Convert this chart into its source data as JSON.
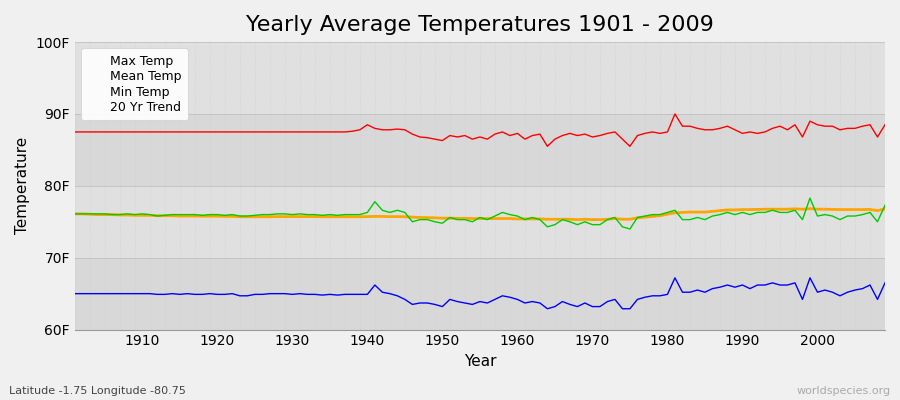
{
  "title": "Yearly Average Temperatures 1901 - 2009",
  "xlabel": "Year",
  "ylabel": "Temperature",
  "lat_lon_text": "Latitude -1.75 Longitude -80.75",
  "watermark": "worldspecies.org",
  "years": [
    1901,
    1902,
    1903,
    1904,
    1905,
    1906,
    1907,
    1908,
    1909,
    1910,
    1911,
    1912,
    1913,
    1914,
    1915,
    1916,
    1917,
    1918,
    1919,
    1920,
    1921,
    1922,
    1923,
    1924,
    1925,
    1926,
    1927,
    1928,
    1929,
    1930,
    1931,
    1932,
    1933,
    1934,
    1935,
    1936,
    1937,
    1938,
    1939,
    1940,
    1941,
    1942,
    1943,
    1944,
    1945,
    1946,
    1947,
    1948,
    1949,
    1950,
    1951,
    1952,
    1953,
    1954,
    1955,
    1956,
    1957,
    1958,
    1959,
    1960,
    1961,
    1962,
    1963,
    1964,
    1965,
    1966,
    1967,
    1968,
    1969,
    1970,
    1971,
    1972,
    1973,
    1974,
    1975,
    1976,
    1977,
    1978,
    1979,
    1980,
    1981,
    1982,
    1983,
    1984,
    1985,
    1986,
    1987,
    1988,
    1989,
    1990,
    1991,
    1992,
    1993,
    1994,
    1995,
    1996,
    1997,
    1998,
    1999,
    2000,
    2001,
    2002,
    2003,
    2004,
    2005,
    2006,
    2007,
    2008,
    2009
  ],
  "max_temp": [
    87.5,
    87.5,
    87.5,
    87.5,
    87.5,
    87.5,
    87.5,
    87.5,
    87.5,
    87.5,
    87.5,
    87.5,
    87.5,
    87.5,
    87.5,
    87.5,
    87.5,
    87.5,
    87.5,
    87.5,
    87.5,
    87.5,
    87.5,
    87.5,
    87.5,
    87.5,
    87.5,
    87.5,
    87.5,
    87.5,
    87.5,
    87.5,
    87.5,
    87.5,
    87.5,
    87.5,
    87.5,
    87.6,
    87.8,
    88.5,
    88.0,
    87.8,
    87.8,
    87.9,
    87.8,
    87.2,
    86.8,
    86.7,
    86.5,
    86.3,
    87.0,
    86.8,
    87.0,
    86.5,
    86.8,
    86.5,
    87.2,
    87.5,
    87.0,
    87.3,
    86.5,
    87.0,
    87.2,
    85.5,
    86.5,
    87.0,
    87.3,
    87.0,
    87.2,
    86.8,
    87.0,
    87.3,
    87.5,
    86.5,
    85.5,
    87.0,
    87.3,
    87.5,
    87.3,
    87.5,
    90.0,
    88.3,
    88.3,
    88.0,
    87.8,
    87.8,
    88.0,
    88.3,
    87.8,
    87.3,
    87.5,
    87.3,
    87.5,
    88.0,
    88.3,
    87.8,
    88.5,
    86.8,
    89.0,
    88.5,
    88.3,
    88.3,
    87.8,
    88.0,
    88.0,
    88.3,
    88.5,
    86.8,
    88.5
  ],
  "mean_temp": [
    76.1,
    76.1,
    76.1,
    76.1,
    76.1,
    76.0,
    76.0,
    76.1,
    76.0,
    76.1,
    76.0,
    75.8,
    75.9,
    76.0,
    76.0,
    76.0,
    76.0,
    75.9,
    76.0,
    76.0,
    75.9,
    76.0,
    75.8,
    75.8,
    75.9,
    76.0,
    76.0,
    76.1,
    76.1,
    76.0,
    76.1,
    76.0,
    76.0,
    75.9,
    76.0,
    75.9,
    76.0,
    76.0,
    76.0,
    76.3,
    77.8,
    76.6,
    76.3,
    76.6,
    76.3,
    75.0,
    75.3,
    75.3,
    75.0,
    74.8,
    75.6,
    75.3,
    75.3,
    75.0,
    75.6,
    75.3,
    75.8,
    76.3,
    76.0,
    75.8,
    75.3,
    75.6,
    75.3,
    74.3,
    74.6,
    75.3,
    75.0,
    74.6,
    75.0,
    74.6,
    74.6,
    75.3,
    75.6,
    74.3,
    74.0,
    75.6,
    75.8,
    76.0,
    76.0,
    76.3,
    76.6,
    75.3,
    75.3,
    75.6,
    75.3,
    75.8,
    76.0,
    76.3,
    76.0,
    76.3,
    76.0,
    76.3,
    76.3,
    76.6,
    76.3,
    76.3,
    76.6,
    75.3,
    78.3,
    75.8,
    76.0,
    75.8,
    75.3,
    75.8,
    75.8,
    76.0,
    76.3,
    75.0,
    77.3
  ],
  "min_temp": [
    65.0,
    65.0,
    65.0,
    65.0,
    65.0,
    65.0,
    65.0,
    65.0,
    65.0,
    65.0,
    65.0,
    64.9,
    64.9,
    65.0,
    64.9,
    65.0,
    64.9,
    64.9,
    65.0,
    64.9,
    64.9,
    65.0,
    64.7,
    64.7,
    64.9,
    64.9,
    65.0,
    65.0,
    65.0,
    64.9,
    65.0,
    64.9,
    64.9,
    64.8,
    64.9,
    64.8,
    64.9,
    64.9,
    64.9,
    64.9,
    66.2,
    65.2,
    65.0,
    64.7,
    64.2,
    63.5,
    63.7,
    63.7,
    63.5,
    63.2,
    64.2,
    63.9,
    63.7,
    63.5,
    63.9,
    63.7,
    64.2,
    64.7,
    64.5,
    64.2,
    63.7,
    63.9,
    63.7,
    62.9,
    63.2,
    63.9,
    63.5,
    63.2,
    63.7,
    63.2,
    63.2,
    63.9,
    64.2,
    62.9,
    62.9,
    64.2,
    64.5,
    64.7,
    64.7,
    64.9,
    67.2,
    65.2,
    65.2,
    65.5,
    65.2,
    65.7,
    65.9,
    66.2,
    65.9,
    66.2,
    65.7,
    66.2,
    66.2,
    66.5,
    66.2,
    66.2,
    66.5,
    64.2,
    67.2,
    65.2,
    65.5,
    65.2,
    64.7,
    65.2,
    65.5,
    65.7,
    66.2,
    64.2,
    66.5
  ],
  "trend_20yr": [
    76.1,
    76.1,
    76.05,
    76.0,
    76.0,
    76.0,
    75.95,
    75.95,
    75.9,
    75.9,
    75.9,
    75.85,
    75.85,
    75.85,
    75.8,
    75.8,
    75.8,
    75.78,
    75.78,
    75.78,
    75.75,
    75.75,
    75.7,
    75.7,
    75.7,
    75.7,
    75.7,
    75.72,
    75.72,
    75.72,
    75.72,
    75.72,
    75.72,
    75.7,
    75.7,
    75.7,
    75.7,
    75.7,
    75.7,
    75.72,
    75.75,
    75.75,
    75.72,
    75.72,
    75.7,
    75.65,
    75.6,
    75.58,
    75.55,
    75.5,
    75.5,
    75.48,
    75.48,
    75.45,
    75.45,
    75.45,
    75.45,
    75.45,
    75.45,
    75.4,
    75.4,
    75.4,
    75.4,
    75.35,
    75.35,
    75.35,
    75.35,
    75.3,
    75.35,
    75.3,
    75.3,
    75.35,
    75.45,
    75.35,
    75.35,
    75.55,
    75.65,
    75.75,
    75.85,
    76.05,
    76.25,
    76.3,
    76.35,
    76.35,
    76.35,
    76.45,
    76.55,
    76.65,
    76.65,
    76.7,
    76.7,
    76.72,
    76.75,
    76.75,
    76.75,
    76.75,
    76.8,
    76.75,
    76.82,
    76.75,
    76.75,
    76.72,
    76.7,
    76.7,
    76.7,
    76.7,
    76.72,
    76.55,
    76.8
  ],
  "max_color": "#ff0000",
  "mean_color": "#00cc00",
  "min_color": "#0000ff",
  "trend_color": "#ffa500",
  "bg_color": "#f0f0f0",
  "plot_bg_light": "#e8e8e8",
  "plot_bg_dark": "#d8d8d8",
  "grid_color": "#c8c8c8",
  "ylim": [
    60,
    100
  ],
  "yticks": [
    60,
    70,
    80,
    90,
    100
  ],
  "ytick_labels": [
    "60F",
    "70F",
    "80F",
    "90F",
    "100F"
  ],
  "xticks": [
    1910,
    1920,
    1930,
    1940,
    1950,
    1960,
    1970,
    1980,
    1990,
    2000
  ],
  "title_fontsize": 16,
  "axis_label_fontsize": 11,
  "tick_fontsize": 10,
  "legend_fontsize": 9,
  "band_colors": [
    "#d8d8d8",
    "#e0e0e0",
    "#d8d8d8",
    "#e0e0e0"
  ],
  "band_ranges": [
    [
      60,
      70
    ],
    [
      70,
      80
    ],
    [
      80,
      90
    ],
    [
      90,
      100
    ]
  ]
}
